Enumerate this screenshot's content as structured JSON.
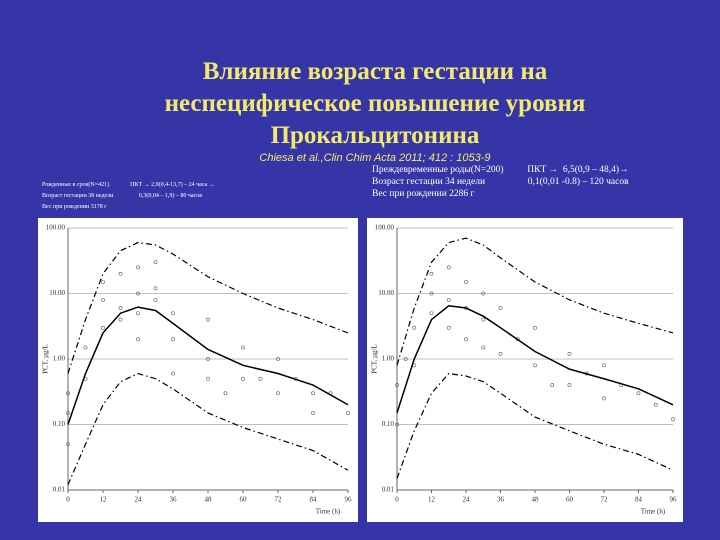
{
  "slide": {
    "title_lines": [
      "Влияние  возраста  гестации  на",
      "неспецифическое повышение  уровня",
      "Прокальцитонина"
    ],
    "citation": "Chiesa et al.,Clin Chim Acta 2011; 412 : 1053-9",
    "left_text": [
      "Рожденные в срок(N=421)              ПКТ → 2,9(0,4-13,7) – 24 часа →",
      "Возраст гестации 38 недели                 0,3(0,04 – 1,9) – 80 часов",
      "Вес при рождении 3178 г"
    ],
    "right_text": [
      "Преждевременные роды(N=200)          ПКТ →  6,5(0,9 – 48,4)→",
      "Возраст гестации 34 недели                  0,1(0,01 -0.8) – 120 часов",
      "Вес при рождении 2286 г"
    ]
  },
  "chart_data": [
    {
      "type": "line",
      "xlabel": "Time (h)",
      "ylabel": "PCT, µg/L",
      "log_y": true,
      "grid": true,
      "xlim": [
        0,
        96
      ],
      "ylim": [
        0.01,
        100
      ],
      "xticks": [
        0,
        12,
        24,
        36,
        48,
        60,
        72,
        84,
        96
      ],
      "yticks": [
        {
          "value": 0.01,
          "label": "0.01"
        },
        {
          "value": 0.1,
          "label": "0.10"
        },
        {
          "value": 1,
          "label": "1.00"
        },
        {
          "value": 10,
          "label": "10.00"
        },
        {
          "value": 100,
          "label": "100.00"
        }
      ],
      "series": [
        {
          "style": "solid",
          "color": "#000000",
          "x": [
            0,
            6,
            12,
            18,
            24,
            30,
            36,
            48,
            60,
            72,
            84,
            96
          ],
          "values": [
            0.1,
            0.6,
            2.5,
            5,
            6.2,
            5.5,
            3.5,
            1.4,
            0.8,
            0.6,
            0.4,
            0.2
          ]
        },
        {
          "style": "dashdot",
          "color": "#000000",
          "x": [
            0,
            6,
            12,
            18,
            24,
            30,
            36,
            48,
            60,
            72,
            84,
            96
          ],
          "values": [
            0.6,
            4,
            20,
            45,
            60,
            55,
            40,
            18,
            10,
            6,
            4,
            2.5
          ]
        },
        {
          "style": "dashdot",
          "color": "#000000",
          "x": [
            0,
            6,
            12,
            18,
            24,
            30,
            36,
            48,
            60,
            72,
            84,
            96
          ],
          "values": [
            0.012,
            0.05,
            0.2,
            0.45,
            0.6,
            0.5,
            0.35,
            0.15,
            0.09,
            0.06,
            0.04,
            0.02
          ]
        }
      ],
      "points": {
        "color": "#555555",
        "x": [
          0,
          0,
          0,
          6,
          6,
          12,
          12,
          12,
          18,
          18,
          18,
          24,
          24,
          24,
          24,
          30,
          30,
          30,
          36,
          36,
          36,
          48,
          48,
          48,
          54,
          60,
          60,
          66,
          72,
          72,
          78,
          84,
          84,
          90,
          96
        ],
        "y": [
          0.3,
          0.15,
          0.05,
          1.5,
          0.5,
          8,
          3,
          15,
          20,
          6,
          4,
          25,
          10,
          5,
          2,
          30,
          12,
          8,
          5,
          2,
          0.6,
          4,
          1,
          0.5,
          0.3,
          1.5,
          0.5,
          0.5,
          1,
          0.3,
          0.5,
          0.3,
          0.15,
          0.3,
          0.15
        ]
      }
    },
    {
      "type": "line",
      "xlabel": "Time (h)",
      "ylabel": "PCT, µg/L",
      "log_y": true,
      "grid": true,
      "xlim": [
        0,
        96
      ],
      "ylim": [
        0.01,
        100
      ],
      "xticks": [
        0,
        12,
        24,
        36,
        48,
        60,
        72,
        84,
        96
      ],
      "yticks": [
        {
          "value": 0.01,
          "label": "0.01"
        },
        {
          "value": 0.1,
          "label": "0.10"
        },
        {
          "value": 1,
          "label": "1.00"
        },
        {
          "value": 10,
          "label": "10.00"
        },
        {
          "value": 100,
          "label": "100.00"
        }
      ],
      "series": [
        {
          "style": "solid",
          "color": "#000000",
          "x": [
            0,
            6,
            12,
            18,
            24,
            30,
            36,
            48,
            60,
            72,
            84,
            96
          ],
          "values": [
            0.15,
            1,
            4,
            6.5,
            6,
            4.5,
            3,
            1.3,
            0.7,
            0.5,
            0.35,
            0.2
          ]
        },
        {
          "style": "dashdot",
          "color": "#000000",
          "x": [
            0,
            6,
            12,
            18,
            24,
            30,
            36,
            48,
            60,
            72,
            84,
            96
          ],
          "values": [
            0.8,
            6,
            30,
            60,
            70,
            55,
            35,
            15,
            8,
            5,
            3.5,
            2.5
          ]
        },
        {
          "style": "dashdot",
          "color": "#000000",
          "x": [
            0,
            6,
            12,
            18,
            24,
            30,
            36,
            48,
            60,
            72,
            84,
            96
          ],
          "values": [
            0.015,
            0.08,
            0.3,
            0.6,
            0.55,
            0.45,
            0.3,
            0.13,
            0.08,
            0.05,
            0.035,
            0.02
          ]
        }
      ],
      "points": {
        "color": "#555555",
        "x": [
          0,
          0,
          3,
          6,
          6,
          12,
          12,
          12,
          18,
          18,
          18,
          24,
          24,
          24,
          30,
          30,
          30,
          36,
          36,
          42,
          48,
          48,
          54,
          60,
          60,
          66,
          72,
          72,
          78,
          84,
          90,
          96
        ],
        "y": [
          0.4,
          0.1,
          1,
          3,
          0.8,
          10,
          5,
          20,
          25,
          8,
          3,
          15,
          6,
          2,
          10,
          4,
          1.5,
          6,
          1.2,
          2,
          3,
          0.8,
          0.4,
          1.2,
          0.4,
          0.6,
          0.8,
          0.25,
          0.4,
          0.3,
          0.2,
          0.12
        ]
      }
    }
  ]
}
